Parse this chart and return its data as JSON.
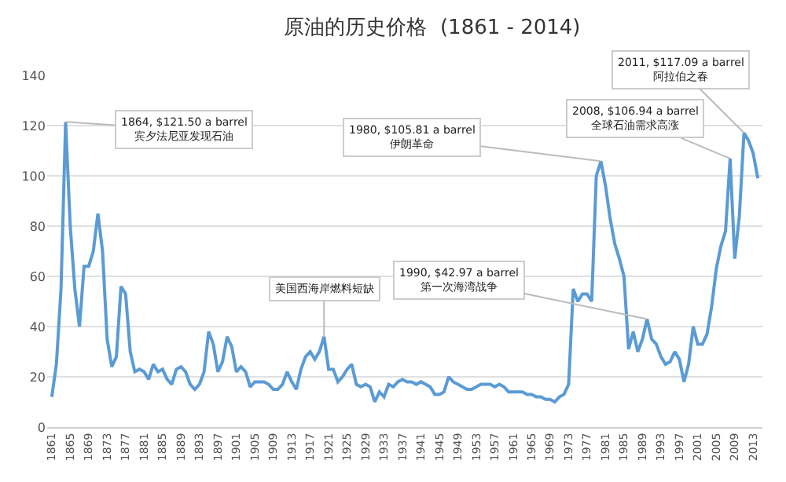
{
  "chart_data": {
    "type": "line",
    "title": "原油的历史价格  (1861 - 2014)",
    "x": [
      1861,
      1862,
      1863,
      1864,
      1865,
      1866,
      1867,
      1868,
      1869,
      1870,
      1871,
      1872,
      1873,
      1874,
      1875,
      1876,
      1877,
      1878,
      1879,
      1880,
      1881,
      1882,
      1883,
      1884,
      1885,
      1886,
      1887,
      1888,
      1889,
      1890,
      1891,
      1892,
      1893,
      1894,
      1895,
      1896,
      1897,
      1898,
      1899,
      1900,
      1901,
      1902,
      1903,
      1904,
      1905,
      1906,
      1907,
      1908,
      1909,
      1910,
      1911,
      1912,
      1913,
      1914,
      1915,
      1916,
      1917,
      1918,
      1919,
      1920,
      1921,
      1922,
      1923,
      1924,
      1925,
      1926,
      1927,
      1928,
      1929,
      1930,
      1931,
      1932,
      1933,
      1934,
      1935,
      1936,
      1937,
      1938,
      1939,
      1940,
      1941,
      1942,
      1943,
      1944,
      1945,
      1946,
      1947,
      1948,
      1949,
      1950,
      1951,
      1952,
      1953,
      1954,
      1955,
      1956,
      1957,
      1958,
      1959,
      1960,
      1961,
      1962,
      1963,
      1964,
      1965,
      1966,
      1967,
      1968,
      1969,
      1970,
      1971,
      1972,
      1973,
      1974,
      1975,
      1976,
      1977,
      1978,
      1979,
      1980,
      1981,
      1982,
      1983,
      1984,
      1985,
      1986,
      1987,
      1988,
      1989,
      1990,
      1991,
      1992,
      1993,
      1994,
      1995,
      1996,
      1997,
      1998,
      1999,
      2000,
      2001,
      2002,
      2003,
      2004,
      2005,
      2006,
      2007,
      2008,
      2009,
      2010,
      2011,
      2012,
      2013,
      2014
    ],
    "series": [
      {
        "color": "#5b9bd5",
        "values": [
          12,
          25,
          55,
          121.5,
          80,
          55,
          40,
          64,
          64,
          70,
          85,
          70,
          35,
          24,
          28,
          56,
          53,
          30,
          22,
          23,
          22,
          19,
          25,
          22,
          23,
          19,
          17,
          23,
          24,
          22,
          17,
          15,
          17,
          22,
          38,
          33,
          22,
          26,
          36,
          32,
          22,
          24,
          22,
          16,
          18,
          18,
          18,
          17,
          15,
          15,
          17,
          22,
          18,
          15,
          23,
          28,
          30,
          27,
          30,
          36,
          23,
          23,
          18,
          20,
          23,
          25,
          17,
          16,
          17,
          16,
          10,
          14,
          12,
          17,
          16,
          18,
          19,
          18,
          18,
          17,
          18,
          17,
          16,
          13,
          13,
          14,
          20,
          18,
          17,
          16,
          15,
          15,
          16,
          17,
          17,
          17,
          16,
          17,
          16,
          14,
          14,
          14,
          14,
          13,
          13,
          12,
          12,
          11,
          11,
          10,
          12,
          13,
          17,
          55,
          50,
          53,
          53,
          50,
          100,
          105.81,
          96,
          83,
          73,
          67,
          60,
          31,
          38,
          30,
          35,
          42.97,
          35,
          33,
          28,
          25,
          26,
          30,
          27,
          18,
          25,
          40,
          33,
          33,
          37,
          48,
          63,
          72,
          78,
          106.94,
          67,
          84,
          117.09,
          114,
          109,
          99
        ]
      }
    ],
    "xlim": [
      1860,
      2015
    ],
    "xticks": [
      1861,
      1865,
      1869,
      1873,
      1877,
      1881,
      1885,
      1889,
      1893,
      1897,
      1901,
      1905,
      1909,
      1913,
      1917,
      1921,
      1925,
      1929,
      1933,
      1937,
      1941,
      1945,
      1949,
      1953,
      1957,
      1961,
      1965,
      1969,
      1973,
      1977,
      1981,
      1985,
      1989,
      1993,
      1997,
      2001,
      2005,
      2009,
      2013
    ],
    "ylim": [
      0,
      140
    ],
    "yticks": [
      0,
      20,
      40,
      60,
      80,
      100,
      120,
      140
    ],
    "grid": "y",
    "marker": "none",
    "line_style": "solid",
    "annotations": [
      {
        "text": "1864, $121.50 a barrel\n宾夕法尼亚发现石油",
        "x": 1864,
        "y": 121.5
      },
      {
        "text": "美国西海岸燃料短缺",
        "x": 1920,
        "y": 36
      },
      {
        "text": "1980, $105.81 a barrel\n伊朗革命",
        "x": 1980,
        "y": 105.81
      },
      {
        "text": "2008, $106.94 a barrel\n全球石油需求高涨",
        "x": 2008,
        "y": 106.94
      },
      {
        "text": "2011, $117.09 a barrel\n阿拉伯之春",
        "x": 2011,
        "y": 117.09
      },
      {
        "text": "1990, $42.97 a barrel\n第一次海湾战争",
        "x": 1990,
        "y": 42.97
      }
    ]
  }
}
